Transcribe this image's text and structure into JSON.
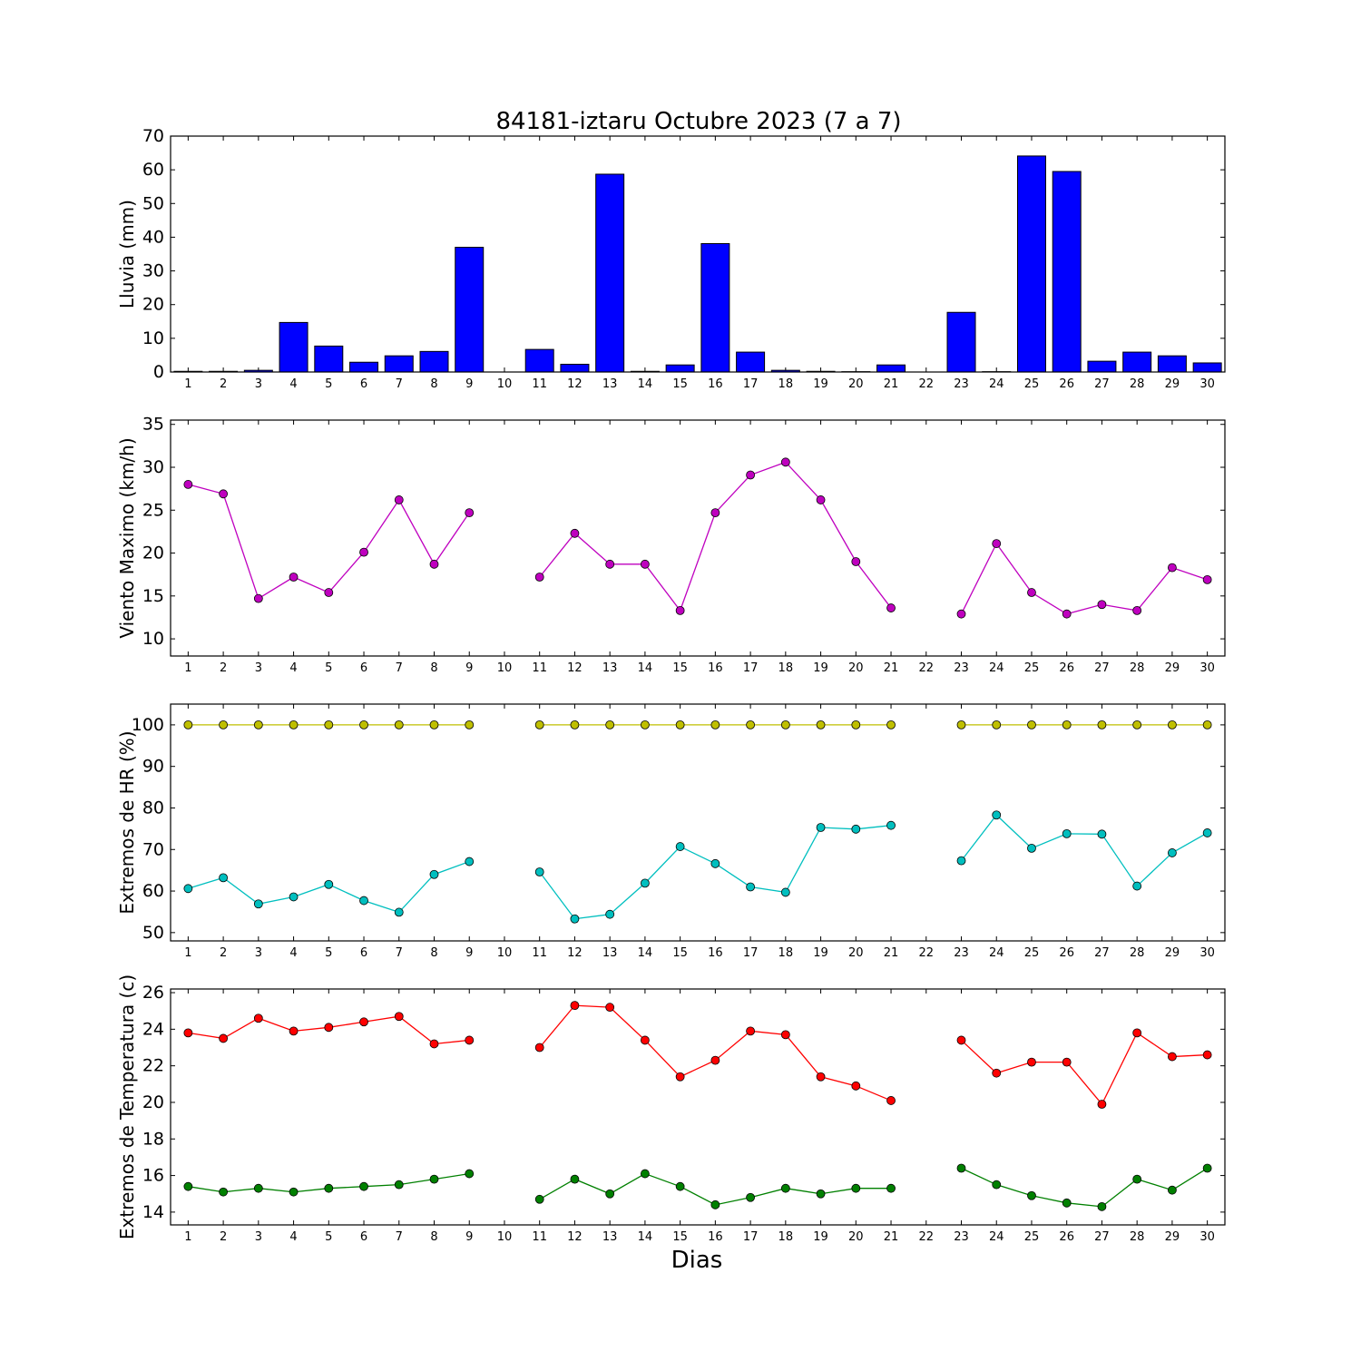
{
  "title": "84181-iztaru Octubre 2023  (7 a 7)",
  "xlabel": "Dias",
  "chart_data": [
    {
      "type": "bar",
      "ylabel": "Lluvia (mm)",
      "x": [
        1,
        2,
        3,
        4,
        5,
        6,
        7,
        8,
        9,
        10,
        11,
        12,
        13,
        14,
        15,
        16,
        17,
        18,
        19,
        20,
        21,
        22,
        23,
        24,
        25,
        26,
        27,
        28,
        29,
        30
      ],
      "xticks": [
        "1",
        "2",
        "3",
        "4",
        "5",
        "6",
        "7",
        "8",
        "9",
        "10",
        "11",
        "12",
        "13",
        "14",
        "15",
        "16",
        "17",
        "18",
        "19",
        "20",
        "21",
        "22",
        "23",
        "24",
        "25",
        "26",
        "27",
        "28",
        "29",
        "30"
      ],
      "ylim": [
        0,
        70
      ],
      "yticks": [
        0,
        10,
        20,
        30,
        40,
        50,
        60,
        70
      ],
      "series": [
        {
          "color": "#0000ff",
          "values": [
            0.2,
            0.2,
            0.5,
            14.7,
            7.7,
            2.9,
            4.8,
            6.1,
            37.0,
            null,
            6.7,
            2.3,
            58.7,
            0.2,
            2.1,
            38.1,
            5.9,
            0.5,
            0.2,
            0.1,
            2.1,
            null,
            17.7,
            0.1,
            64.1,
            59.5,
            3.2,
            5.9,
            4.8,
            2.7
          ]
        }
      ]
    },
    {
      "type": "line",
      "ylabel": "Viento Maximo (km/h)",
      "x": [
        1,
        2,
        3,
        4,
        5,
        6,
        7,
        8,
        9,
        10,
        11,
        12,
        13,
        14,
        15,
        16,
        17,
        18,
        19,
        20,
        21,
        22,
        23,
        24,
        25,
        26,
        27,
        28,
        29,
        30
      ],
      "xticks": [
        "1",
        "2",
        "3",
        "4",
        "5",
        "6",
        "7",
        "8",
        "9",
        "10",
        "11",
        "12",
        "13",
        "14",
        "15",
        "16",
        "17",
        "18",
        "19",
        "20",
        "21",
        "22",
        "23",
        "24",
        "25",
        "26",
        "27",
        "28",
        "29",
        "30"
      ],
      "ylim": [
        8,
        35.5
      ],
      "yticks": [
        10,
        15,
        20,
        25,
        30,
        35
      ],
      "series": [
        {
          "color": "#bf00bf",
          "values": [
            28.0,
            26.9,
            14.7,
            17.2,
            15.4,
            20.1,
            26.2,
            18.7,
            24.7,
            null,
            17.2,
            22.3,
            18.7,
            18.7,
            13.3,
            24.7,
            29.1,
            30.6,
            26.2,
            19.0,
            13.6,
            null,
            12.9,
            21.1,
            15.4,
            12.9,
            14.0,
            13.3,
            18.3,
            16.9
          ]
        }
      ]
    },
    {
      "type": "line",
      "ylabel": "Extremos de HR (%)",
      "x": [
        1,
        2,
        3,
        4,
        5,
        6,
        7,
        8,
        9,
        10,
        11,
        12,
        13,
        14,
        15,
        16,
        17,
        18,
        19,
        20,
        21,
        22,
        23,
        24,
        25,
        26,
        27,
        28,
        29,
        30
      ],
      "xticks": [
        "1",
        "2",
        "3",
        "4",
        "5",
        "6",
        "7",
        "8",
        "9",
        "10",
        "11",
        "12",
        "13",
        "14",
        "15",
        "16",
        "17",
        "18",
        "19",
        "20",
        "21",
        "22",
        "23",
        "24",
        "25",
        "26",
        "27",
        "28",
        "29",
        "30"
      ],
      "ylim": [
        48,
        105
      ],
      "yticks": [
        50,
        60,
        70,
        80,
        90,
        100
      ],
      "series": [
        {
          "color": "#bfbf00",
          "values": [
            100,
            100,
            100,
            100,
            100,
            100,
            100,
            100,
            100,
            null,
            100,
            100,
            100,
            100,
            100,
            100,
            100,
            100,
            100,
            100,
            100,
            null,
            100,
            100,
            100,
            100,
            100,
            100,
            100,
            100
          ]
        },
        {
          "color": "#00bfbf",
          "values": [
            60.6,
            63.2,
            56.9,
            58.6,
            61.6,
            57.7,
            54.9,
            64.0,
            67.1,
            null,
            64.6,
            53.3,
            54.4,
            61.9,
            70.7,
            66.6,
            61.0,
            59.7,
            75.3,
            74.9,
            75.8,
            null,
            67.3,
            78.3,
            70.3,
            73.8,
            73.7,
            61.2,
            69.2,
            74.0
          ]
        }
      ]
    },
    {
      "type": "line",
      "ylabel": "Extremos de Temperatura (c)",
      "x": [
        1,
        2,
        3,
        4,
        5,
        6,
        7,
        8,
        9,
        10,
        11,
        12,
        13,
        14,
        15,
        16,
        17,
        18,
        19,
        20,
        21,
        22,
        23,
        24,
        25,
        26,
        27,
        28,
        29,
        30
      ],
      "xticks": [
        "1",
        "2",
        "3",
        "4",
        "5",
        "6",
        "7",
        "8",
        "9",
        "10",
        "11",
        "12",
        "13",
        "14",
        "15",
        "16",
        "17",
        "18",
        "19",
        "20",
        "21",
        "22",
        "23",
        "24",
        "25",
        "26",
        "27",
        "28",
        "29",
        "30"
      ],
      "ylim": [
        13.3,
        26.2
      ],
      "yticks": [
        14,
        16,
        18,
        20,
        22,
        24,
        26
      ],
      "series": [
        {
          "color": "#ff0000",
          "values": [
            23.8,
            23.5,
            24.6,
            23.9,
            24.1,
            24.4,
            24.7,
            23.2,
            23.4,
            null,
            23.0,
            25.3,
            25.2,
            23.4,
            21.4,
            22.3,
            23.9,
            23.7,
            21.4,
            20.9,
            20.1,
            null,
            23.4,
            21.6,
            22.2,
            22.2,
            19.9,
            23.8,
            22.5,
            22.6
          ]
        },
        {
          "color": "#008000",
          "values": [
            15.4,
            15.1,
            15.3,
            15.1,
            15.3,
            15.4,
            15.5,
            15.8,
            16.1,
            null,
            14.7,
            15.8,
            15.0,
            16.1,
            15.4,
            14.4,
            14.8,
            15.3,
            15.0,
            15.3,
            15.3,
            null,
            16.4,
            15.5,
            14.9,
            14.5,
            14.3,
            15.8,
            15.2,
            16.4
          ]
        }
      ]
    }
  ]
}
